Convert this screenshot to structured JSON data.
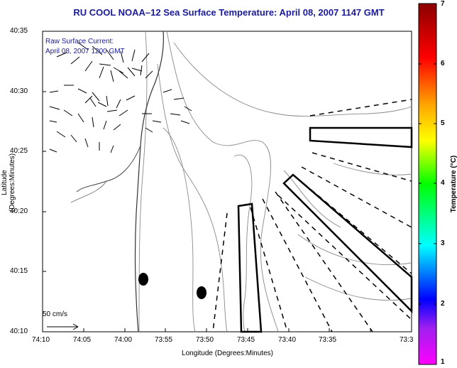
{
  "title": "RU COOL  NOAA–12  Sea Surface Temperature:  April 08, 2007 1147 GMT",
  "overlay": {
    "line1": "Raw Surface Current:",
    "line2": "April 08, 2007 1200 GMT"
  },
  "scale_label": "50 cm/s",
  "axes": {
    "xlabel": "Longitude (Degrees:Minutes)",
    "ylabel": "Latitude (Degrees:Minutes)",
    "xticks": [
      "74:10",
      "74:05",
      "74:00",
      "73:55",
      "73:50",
      "73:45",
      "73:40",
      "73:35",
      "73:3"
    ],
    "yticks": [
      "40:35",
      "40:30",
      "40:25",
      "40:20",
      "40:15",
      "40:10"
    ]
  },
  "colorbar": {
    "label": "Temperature (°C)",
    "ticks": [
      "7",
      "6",
      "5",
      "4",
      "3",
      "2",
      "1"
    ],
    "range": [
      1,
      7
    ]
  },
  "colors": {
    "title": "#1a1a9a",
    "overlay_text": "#1a1a9a"
  }
}
